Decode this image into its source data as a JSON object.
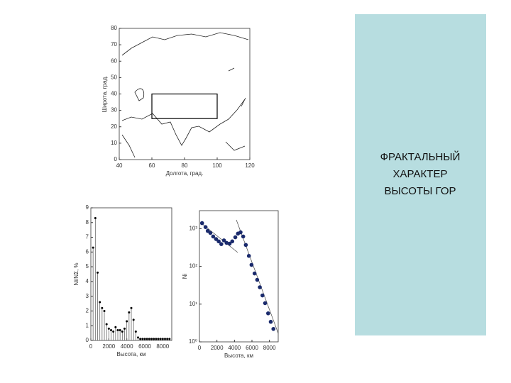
{
  "panel": {
    "lines": [
      "ФРАКТАЛЬНЫЙ",
      "ХАРАКТЕР",
      "ВЫСОТЫ ГОР"
    ]
  },
  "chart_data": [
    {
      "type": "map",
      "xlabel": "Долгота, град.",
      "ylabel": "Широта, град.",
      "xlim": [
        40,
        120
      ],
      "ylim": [
        0,
        80
      ],
      "xticks": [
        40,
        60,
        80,
        100,
        120
      ],
      "yticks": [
        0,
        10,
        20,
        30,
        40,
        50,
        60,
        70,
        80
      ],
      "box": {
        "x": [
          60,
          100
        ],
        "y": [
          25,
          40
        ]
      },
      "color": "#000000"
    },
    {
      "type": "stem",
      "xlabel": "Высота, км",
      "ylabel": "Ni/NΣ, %",
      "xlim": [
        0,
        9000
      ],
      "ylim": [
        0,
        9
      ],
      "xticks": [
        0,
        2000,
        4000,
        6000,
        8000
      ],
      "yticks": [
        0,
        1,
        2,
        3,
        4,
        5,
        6,
        7,
        8,
        9
      ],
      "x": [
        250,
        500,
        750,
        1000,
        1250,
        1500,
        1750,
        2000,
        2250,
        2500,
        2750,
        3000,
        3250,
        3500,
        3750,
        4000,
        4250,
        4500,
        4750,
        5000,
        5250,
        5500,
        5750,
        6000,
        6250,
        6500,
        6750,
        7000,
        7250,
        7500,
        7750,
        8000,
        8250,
        8500,
        8750
      ],
      "y": [
        6.3,
        8.3,
        4.6,
        2.6,
        2.2,
        2.0,
        1.1,
        0.8,
        0.7,
        0.6,
        0.9,
        0.7,
        0.7,
        0.6,
        0.8,
        1.3,
        1.9,
        2.2,
        1.4,
        0.6,
        0.2,
        0.1,
        0.1,
        0.1,
        0.1,
        0.1,
        0.1,
        0.1,
        0.1,
        0.1,
        0.1,
        0.1,
        0.1,
        0.1,
        0.1
      ],
      "color": "#000000"
    },
    {
      "type": "scatter",
      "xlabel": "Высота, км",
      "ylabel": "Ni",
      "log_y": true,
      "xlim": [
        0,
        9000
      ],
      "ylim": [
        1,
        3000
      ],
      "xticks": [
        0,
        2000,
        4000,
        6000,
        8000
      ],
      "yticks": [
        {
          "value": 1,
          "label": "10⁰"
        },
        {
          "value": 10,
          "label": "10¹"
        },
        {
          "value": 100,
          "label": "10²"
        },
        {
          "value": 1000,
          "label": "10³"
        }
      ],
      "x": [
        300,
        700,
        950,
        1250,
        1570,
        1900,
        2200,
        2500,
        2800,
        3100,
        3450,
        3750,
        4100,
        4400,
        4700,
        5000,
        5300,
        5650,
        5950,
        6300,
        6600,
        6900,
        7200,
        7500,
        7850,
        8150,
        8450
      ],
      "y": [
        1400,
        1100,
        870,
        770,
        620,
        530,
        460,
        390,
        490,
        420,
        400,
        460,
        590,
        740,
        800,
        620,
        370,
        190,
        110,
        65,
        44,
        28,
        17,
        10.6,
        5.7,
        3.4,
        2.2
      ],
      "color": "#1a2a6c"
    }
  ]
}
